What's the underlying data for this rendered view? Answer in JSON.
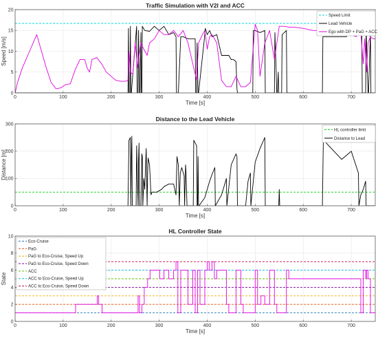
{
  "chart_data": [
    {
      "type": "line",
      "title": "Traffic Simulation with V2I and ACC",
      "xlabel": "Time [s]",
      "ylabel": "Speed [m/s]",
      "xlim": [
        0,
        750
      ],
      "ylim": [
        0,
        20
      ],
      "xticks": [
        0,
        100,
        200,
        300,
        400,
        500,
        600,
        700
      ],
      "yticks": [
        0,
        5,
        10,
        15,
        20
      ],
      "grid": true,
      "legend_position": "top-right",
      "series": [
        {
          "name": "Speed Limit",
          "color": "#00d8e0",
          "style": "dashed",
          "x": [
            0,
            750
          ],
          "y": [
            16.7,
            16.7
          ]
        },
        {
          "name": "Lead Vehicle",
          "color": "#000000",
          "style": "solid",
          "x": [
            0,
            235,
            236,
            237,
            239,
            240,
            241,
            242,
            253,
            254,
            256,
            257,
            259,
            260,
            262,
            263,
            264,
            265,
            270,
            280,
            290,
            300,
            310,
            320,
            330,
            335,
            336,
            340,
            345,
            350,
            360,
            375,
            376,
            378,
            379,
            381,
            382,
            395,
            396,
            400,
            405,
            410,
            420,
            430,
            440,
            445,
            450,
            455,
            460,
            462,
            463,
            495,
            496,
            500,
            510,
            520,
            521,
            540,
            541,
            545,
            546,
            548,
            549,
            555,
            556,
            565,
            566,
            600,
            640,
            641,
            690,
            691,
            715,
            716,
            720,
            722,
            723,
            730,
            731,
            735,
            736,
            740,
            741,
            750
          ],
          "y": [
            0,
            0,
            15.5,
            0,
            0,
            16,
            0,
            0,
            16,
            0,
            0,
            15,
            0,
            0,
            14.5,
            0,
            0,
            16,
            15,
            14.8,
            16,
            15,
            16,
            14,
            14.5,
            13.5,
            0,
            0,
            13.5,
            13.5,
            13,
            13,
            0,
            0,
            12,
            0,
            0,
            14,
            15.5,
            14,
            15,
            13.5,
            14,
            9,
            9,
            9,
            8,
            8,
            7.5,
            1,
            0,
            0,
            15,
            15,
            14.5,
            15,
            0,
            0,
            14.5,
            0,
            0,
            5,
            0,
            0,
            14,
            15,
            0,
            0,
            0,
            13.5,
            13.5,
            15.5,
            15.5,
            14,
            15.5,
            15,
            0,
            0,
            15.5,
            0,
            0,
            14.5,
            0,
            0
          ]
        },
        {
          "name": "Ego with DP + PaG + ACC",
          "color": "#e000e0",
          "style": "solid",
          "x": [
            0,
            5,
            15,
            30,
            45,
            55,
            65,
            75,
            85,
            95,
            105,
            115,
            125,
            135,
            145,
            150,
            155,
            160,
            170,
            180,
            190,
            200,
            210,
            220,
            230,
            235,
            237,
            240,
            245,
            250,
            255,
            258,
            262,
            268,
            275,
            280,
            290,
            300,
            310,
            320,
            330,
            340,
            350,
            360,
            370,
            378,
            382,
            390,
            395,
            400,
            405,
            410,
            420,
            430,
            440,
            450,
            460,
            470,
            480,
            490,
            500,
            505,
            510,
            520,
            530,
            540,
            550,
            560,
            570,
            580,
            600,
            620,
            640,
            660,
            680,
            700,
            710,
            720,
            725,
            728,
            732,
            735,
            740,
            745,
            750
          ],
          "y": [
            0,
            2.5,
            6,
            10,
            14,
            10,
            6,
            2.5,
            1,
            1.2,
            2,
            2.2,
            5.5,
            8,
            8,
            6,
            5,
            8,
            8.5,
            7,
            5,
            4,
            3,
            2.8,
            2.8,
            3,
            10,
            5,
            4.5,
            12,
            6,
            9,
            12,
            10.5,
            9,
            12,
            13,
            15,
            14,
            14,
            15,
            13.5,
            15,
            12,
            7,
            3,
            12,
            14,
            15,
            10.5,
            13.5,
            14,
            12,
            3,
            1.5,
            1.5,
            4,
            1.5,
            1.5,
            2.5,
            16.5,
            15,
            4,
            12,
            15,
            8,
            16,
            16,
            15.8,
            15.8,
            15.5,
            15,
            15,
            15,
            14.8,
            14,
            13.5,
            14.5,
            7,
            13,
            5,
            12,
            13.5,
            13,
            13
          ]
        }
      ]
    },
    {
      "type": "line",
      "title": "Distance to the Lead Vehicle",
      "xlabel": "Time [s]",
      "ylabel": "Distance [m]",
      "xlim": [
        0,
        750
      ],
      "ylim": [
        0,
        300
      ],
      "xticks": [
        0,
        100,
        200,
        300,
        400,
        500,
        600,
        700
      ],
      "yticks": [
        0,
        100,
        200,
        300
      ],
      "grid": true,
      "legend_position": "top-right",
      "series": [
        {
          "name": "HL controller limit",
          "color": "#00c800",
          "style": "dashed",
          "x": [
            0,
            750
          ],
          "y": [
            50,
            50
          ]
        },
        {
          "name": "Distance to Lead",
          "color": "#000000",
          "style": "solid",
          "x": [
            235,
            237,
            240,
            241,
            242,
            243,
            244,
            252,
            253,
            256,
            257,
            258,
            259,
            262,
            263,
            264,
            265,
            266,
            268,
            270,
            273,
            275,
            276,
            277,
            280,
            283,
            285,
            295,
            305,
            310,
            320,
            330,
            335,
            337,
            340,
            342,
            344,
            347,
            352,
            353,
            355,
            356,
            358,
            360,
            365,
            368,
            371,
            372,
            378,
            379,
            380,
            381,
            382,
            383,
            395,
            400,
            405,
            410,
            416,
            417,
            430,
            435,
            440,
            441,
            450,
            460,
            462,
            463,
            480,
            485,
            490,
            491,
            500,
            510,
            520,
            521,
            545,
            549,
            550,
            551,
            640,
            642,
            648,
            680,
            700,
            715,
            716,
            720,
            725,
            730,
            731,
            750
          ],
          "y": [
            0,
            240,
            250,
            0,
            180,
            255,
            0,
            0,
            220,
            0,
            170,
            230,
            0,
            0,
            90,
            190,
            180,
            0,
            100,
            60,
            210,
            0,
            120,
            175,
            150,
            40,
            50,
            50,
            60,
            70,
            80,
            80,
            40,
            180,
            150,
            0,
            120,
            140,
            110,
            0,
            150,
            120,
            0,
            0,
            0,
            0,
            0,
            240,
            220,
            0,
            0,
            180,
            0,
            0,
            30,
            60,
            90,
            115,
            140,
            0,
            40,
            70,
            100,
            0,
            150,
            190,
            180,
            0,
            0,
            90,
            120,
            0,
            160,
            210,
            250,
            0,
            0,
            0,
            60,
            0,
            0,
            250,
            230,
            170,
            200,
            120,
            0,
            40,
            60,
            90,
            0,
            0
          ]
        }
      ]
    },
    {
      "type": "line",
      "title": "HL Controller State",
      "xlabel": "Time [s]",
      "ylabel": "State",
      "xlim": [
        0,
        750
      ],
      "ylim": [
        0,
        10
      ],
      "xticks": [
        0,
        100,
        200,
        300,
        400,
        500,
        600,
        700
      ],
      "yticks": [
        0,
        2,
        4,
        6,
        8,
        10
      ],
      "grid": true,
      "legend_position": "top-left",
      "series": [
        {
          "name": "Eco-Cruise",
          "color": "#1f77b4",
          "style": "dashed",
          "x": [
            0,
            750
          ],
          "y": [
            1,
            1
          ]
        },
        {
          "name": "PaG",
          "color": "#e85000",
          "style": "dashed",
          "x": [
            0,
            750
          ],
          "y": [
            2,
            2
          ]
        },
        {
          "name": "PaG to Eco-Cruise, Speed Up",
          "color": "#e8b000",
          "style": "dashed",
          "x": [
            0,
            750
          ],
          "y": [
            3,
            3
          ]
        },
        {
          "name": "PaG to Eco-Cruise, Speed Down",
          "color": "#8000a0",
          "style": "dashed",
          "x": [
            0,
            750
          ],
          "y": [
            4,
            4
          ]
        },
        {
          "name": "ACC",
          "color": "#60c000",
          "style": "dashed",
          "x": [
            0,
            750
          ],
          "y": [
            5,
            5
          ]
        },
        {
          "name": "ACC to Eco-Cruise, Speed Up",
          "color": "#00b8e0",
          "style": "dashed",
          "x": [
            0,
            750
          ],
          "y": [
            6,
            6
          ]
        },
        {
          "name": "ACC to Eco-Cruise, Speed Down",
          "color": "#c00040",
          "style": "dashed",
          "x": [
            0,
            750
          ],
          "y": [
            7,
            7
          ]
        },
        {
          "name": "State",
          "color": "#e000e0",
          "style": "step",
          "x": [
            0,
            125,
            126,
            170,
            171,
            173,
            174,
            180,
            181,
            255,
            256,
            258,
            259,
            263,
            264,
            268,
            269,
            275,
            276,
            280,
            281,
            300,
            301,
            302,
            310,
            312,
            320,
            322,
            330,
            332,
            335,
            336,
            339,
            340,
            345,
            346,
            360,
            361,
            370,
            371,
            375,
            376,
            380,
            381,
            385,
            386,
            395,
            396,
            400,
            402,
            404,
            406,
            410,
            412,
            415,
            416,
            420,
            422,
            440,
            442,
            445,
            446,
            460,
            461,
            470,
            471,
            475,
            476,
            500,
            501,
            505,
            506,
            512,
            513,
            520,
            521,
            530,
            531,
            540,
            541,
            545,
            546,
            565,
            566,
            570,
            571,
            720,
            721,
            725,
            726,
            730,
            731,
            732,
            733,
            735,
            736,
            740,
            741,
            750
          ],
          "y": [
            1,
            1,
            2,
            2,
            3,
            3,
            2,
            2,
            1,
            1,
            3,
            3,
            1,
            1,
            2,
            2,
            4,
            4,
            5,
            5,
            6,
            6,
            5,
            5,
            6,
            6,
            5,
            5,
            6,
            6,
            7,
            7,
            1,
            1,
            6,
            6,
            2,
            2,
            6,
            6,
            1,
            1,
            6,
            6,
            2,
            2,
            6,
            6,
            7,
            7,
            6,
            6,
            7,
            7,
            5,
            5,
            6,
            6,
            2,
            2,
            1,
            1,
            6,
            6,
            2,
            2,
            1,
            1,
            6,
            6,
            2,
            2,
            3,
            3,
            2,
            2,
            6,
            6,
            2,
            2,
            1,
            1,
            6,
            6,
            5,
            5,
            1,
            1,
            6,
            6,
            5,
            5,
            6,
            6,
            5,
            5,
            1,
            1,
            1
          ]
        }
      ]
    }
  ]
}
